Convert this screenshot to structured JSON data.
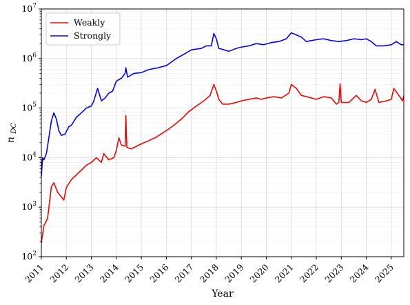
{
  "chart_data": {
    "type": "line",
    "xlabel": "Year",
    "ylabel": "n",
    "ylabel_sub": "DC",
    "yscale": "log",
    "xlim": [
      2011,
      2025.5
    ],
    "ylim": [
      100,
      10000000
    ],
    "grid": true,
    "legend_position": "top-left",
    "x_ticks": [
      2011,
      2012,
      2013,
      2014,
      2015,
      2016,
      2017,
      2018,
      2019,
      2020,
      2021,
      2022,
      2023,
      2024,
      2025
    ],
    "x_tick_labels": [
      "2011",
      "2012",
      "2013",
      "2014",
      "2015",
      "2016",
      "2017",
      "2018",
      "2019",
      "2020",
      "2021",
      "2022",
      "2023",
      "2024",
      "2025"
    ],
    "y_ticks": [
      2,
      3,
      4,
      5,
      6,
      7
    ],
    "y_tick_labels": [
      {
        "base": "10",
        "exp": "2"
      },
      {
        "base": "10",
        "exp": "3"
      },
      {
        "base": "10",
        "exp": "4"
      },
      {
        "base": "10",
        "exp": "5"
      },
      {
        "base": "10",
        "exp": "6"
      },
      {
        "base": "10",
        "exp": "7"
      }
    ],
    "series": [
      {
        "name": "Weakly",
        "color": "#ff0000",
        "points": [
          [
            2011.0,
            190
          ],
          [
            2011.1,
            420
          ],
          [
            2011.25,
            600
          ],
          [
            2011.4,
            2600
          ],
          [
            2011.5,
            3100
          ],
          [
            2011.65,
            2000
          ],
          [
            2011.8,
            1600
          ],
          [
            2011.9,
            1400
          ],
          [
            2012.0,
            2500
          ],
          [
            2012.2,
            3600
          ],
          [
            2012.5,
            5000
          ],
          [
            2012.8,
            7000
          ],
          [
            2013.0,
            8000
          ],
          [
            2013.2,
            10000
          ],
          [
            2013.4,
            8000
          ],
          [
            2013.5,
            12000
          ],
          [
            2013.7,
            9000
          ],
          [
            2013.9,
            10000
          ],
          [
            2014.0,
            14000
          ],
          [
            2014.1,
            25000
          ],
          [
            2014.2,
            18000
          ],
          [
            2014.35,
            17000
          ],
          [
            2014.38,
            70000
          ],
          [
            2014.42,
            16000
          ],
          [
            2014.6,
            15000
          ],
          [
            2015.0,
            19000
          ],
          [
            2015.3,
            22000
          ],
          [
            2015.6,
            26000
          ],
          [
            2016.0,
            35000
          ],
          [
            2016.3,
            45000
          ],
          [
            2016.6,
            60000
          ],
          [
            2016.9,
            85000
          ],
          [
            2017.2,
            110000
          ],
          [
            2017.5,
            140000
          ],
          [
            2017.75,
            180000
          ],
          [
            2017.9,
            300000
          ],
          [
            2018.0,
            220000
          ],
          [
            2018.1,
            150000
          ],
          [
            2018.25,
            120000
          ],
          [
            2018.5,
            120000
          ],
          [
            2018.8,
            130000
          ],
          [
            2019.0,
            140000
          ],
          [
            2019.3,
            150000
          ],
          [
            2019.6,
            160000
          ],
          [
            2019.8,
            150000
          ],
          [
            2020.0,
            160000
          ],
          [
            2020.3,
            170000
          ],
          [
            2020.6,
            160000
          ],
          [
            2020.9,
            200000
          ],
          [
            2021.0,
            300000
          ],
          [
            2021.2,
            250000
          ],
          [
            2021.4,
            180000
          ],
          [
            2021.6,
            170000
          ],
          [
            2021.8,
            160000
          ],
          [
            2022.0,
            150000
          ],
          [
            2022.3,
            170000
          ],
          [
            2022.6,
            160000
          ],
          [
            2022.8,
            120000
          ],
          [
            2022.9,
            130000
          ],
          [
            2022.95,
            310000
          ],
          [
            2023.0,
            130000
          ],
          [
            2023.3,
            130000
          ],
          [
            2023.6,
            180000
          ],
          [
            2023.8,
            140000
          ],
          [
            2024.0,
            130000
          ],
          [
            2024.2,
            150000
          ],
          [
            2024.35,
            240000
          ],
          [
            2024.5,
            130000
          ],
          [
            2024.8,
            140000
          ],
          [
            2025.0,
            150000
          ],
          [
            2025.1,
            250000
          ],
          [
            2025.3,
            180000
          ],
          [
            2025.45,
            140000
          ],
          [
            2025.5,
            180000
          ]
        ]
      },
      {
        "name": "Strongly",
        "color": "#0000ff",
        "points": [
          [
            2011.0,
            4200
          ],
          [
            2011.05,
            10000
          ],
          [
            2011.1,
            9000
          ],
          [
            2011.2,
            12000
          ],
          [
            2011.3,
            25000
          ],
          [
            2011.4,
            55000
          ],
          [
            2011.5,
            80000
          ],
          [
            2011.6,
            60000
          ],
          [
            2011.7,
            35000
          ],
          [
            2011.8,
            28000
          ],
          [
            2011.95,
            30000
          ],
          [
            2012.1,
            42000
          ],
          [
            2012.2,
            45000
          ],
          [
            2012.4,
            65000
          ],
          [
            2012.6,
            80000
          ],
          [
            2012.8,
            100000
          ],
          [
            2013.0,
            110000
          ],
          [
            2013.1,
            140000
          ],
          [
            2013.25,
            250000
          ],
          [
            2013.4,
            140000
          ],
          [
            2013.55,
            160000
          ],
          [
            2013.7,
            200000
          ],
          [
            2013.85,
            220000
          ],
          [
            2014.0,
            350000
          ],
          [
            2014.2,
            400000
          ],
          [
            2014.35,
            500000
          ],
          [
            2014.38,
            650000
          ],
          [
            2014.45,
            420000
          ],
          [
            2014.7,
            500000
          ],
          [
            2015.0,
            520000
          ],
          [
            2015.3,
            600000
          ],
          [
            2015.6,
            640000
          ],
          [
            2016.0,
            720000
          ],
          [
            2016.4,
            1000000
          ],
          [
            2016.8,
            1300000
          ],
          [
            2017.0,
            1500000
          ],
          [
            2017.4,
            1600000
          ],
          [
            2017.6,
            1800000
          ],
          [
            2017.8,
            1800000
          ],
          [
            2017.9,
            3200000
          ],
          [
            2018.0,
            2500000
          ],
          [
            2018.1,
            1600000
          ],
          [
            2018.3,
            1500000
          ],
          [
            2018.5,
            1400000
          ],
          [
            2018.8,
            1600000
          ],
          [
            2019.0,
            1700000
          ],
          [
            2019.3,
            1800000
          ],
          [
            2019.6,
            2000000
          ],
          [
            2019.9,
            1900000
          ],
          [
            2020.2,
            2100000
          ],
          [
            2020.5,
            2200000
          ],
          [
            2020.8,
            2500000
          ],
          [
            2021.0,
            3300000
          ],
          [
            2021.2,
            3000000
          ],
          [
            2021.4,
            2700000
          ],
          [
            2021.6,
            2200000
          ],
          [
            2021.8,
            2300000
          ],
          [
            2022.0,
            2400000
          ],
          [
            2022.3,
            2500000
          ],
          [
            2022.6,
            2300000
          ],
          [
            2022.9,
            2200000
          ],
          [
            2023.2,
            2300000
          ],
          [
            2023.5,
            2500000
          ],
          [
            2023.8,
            2400000
          ],
          [
            2024.0,
            2500000
          ],
          [
            2024.2,
            2200000
          ],
          [
            2024.4,
            1800000
          ],
          [
            2024.7,
            1800000
          ],
          [
            2025.0,
            1900000
          ],
          [
            2025.2,
            2200000
          ],
          [
            2025.4,
            1900000
          ],
          [
            2025.5,
            1900000
          ]
        ]
      }
    ]
  }
}
